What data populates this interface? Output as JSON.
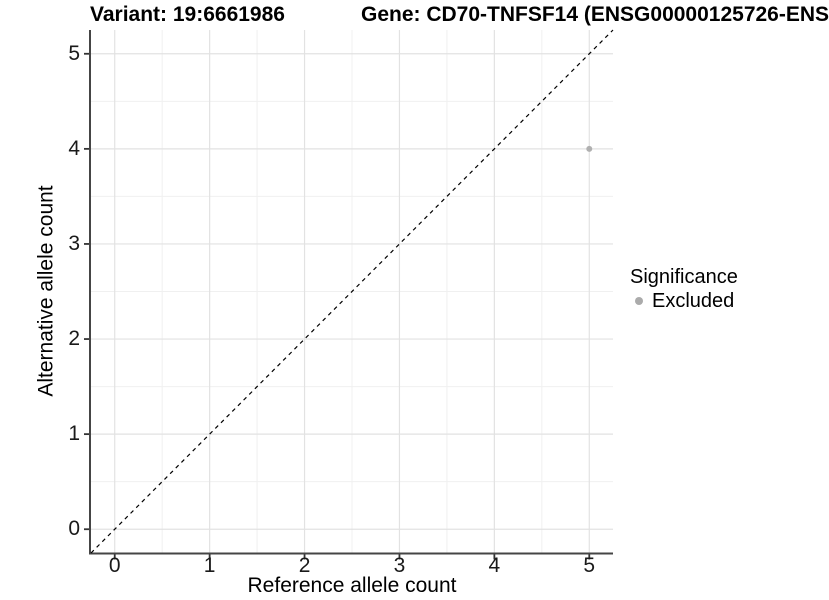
{
  "figure": {
    "variant_title": "Variant: 19:6661986",
    "gene_title": "Gene: CD70-TNFSF14 (ENSG00000125726-ENS"
  },
  "axes": {
    "x": {
      "label": "Reference allele count",
      "ticks": [
        "0",
        "1",
        "2",
        "3",
        "4",
        "5"
      ]
    },
    "y": {
      "label": "Alternative allele count",
      "ticks": [
        "0",
        "1",
        "2",
        "3",
        "4",
        "5"
      ]
    }
  },
  "legend": {
    "title": "Significance",
    "items": [
      {
        "label": "Excluded",
        "marker": "dot",
        "color": "#ABABAB"
      }
    ]
  },
  "colors": {
    "background": "#ffffff",
    "grid_major": "#E2E2E2",
    "grid_minor": "#F0F0F0",
    "axis_line": "#454545",
    "tick_mark": "#333333",
    "point": "#B0B0B0",
    "reference_line": "#000000"
  },
  "chart_data": {
    "type": "scatter",
    "title_left": "Variant: 19:6661986",
    "title_right": "Gene: CD70-TNFSF14 (ENSG00000125726-ENS",
    "xlabel": "Reference allele count",
    "ylabel": "Alternative allele count",
    "xlim": [
      -0.25,
      5.25
    ],
    "ylim": [
      -0.25,
      5.25
    ],
    "xticks": [
      0,
      1,
      2,
      3,
      4,
      5
    ],
    "yticks": [
      0,
      1,
      2,
      3,
      4,
      5
    ],
    "grid": "major+minor",
    "legend_position": "right",
    "reference_line": {
      "type": "identity",
      "slope": 1,
      "intercept": 0,
      "style": "dashed",
      "color": "#000000"
    },
    "series": [
      {
        "name": "Excluded",
        "color": "#B0B0B0",
        "points": [
          {
            "x": 5,
            "y": 4
          }
        ]
      }
    ]
  }
}
